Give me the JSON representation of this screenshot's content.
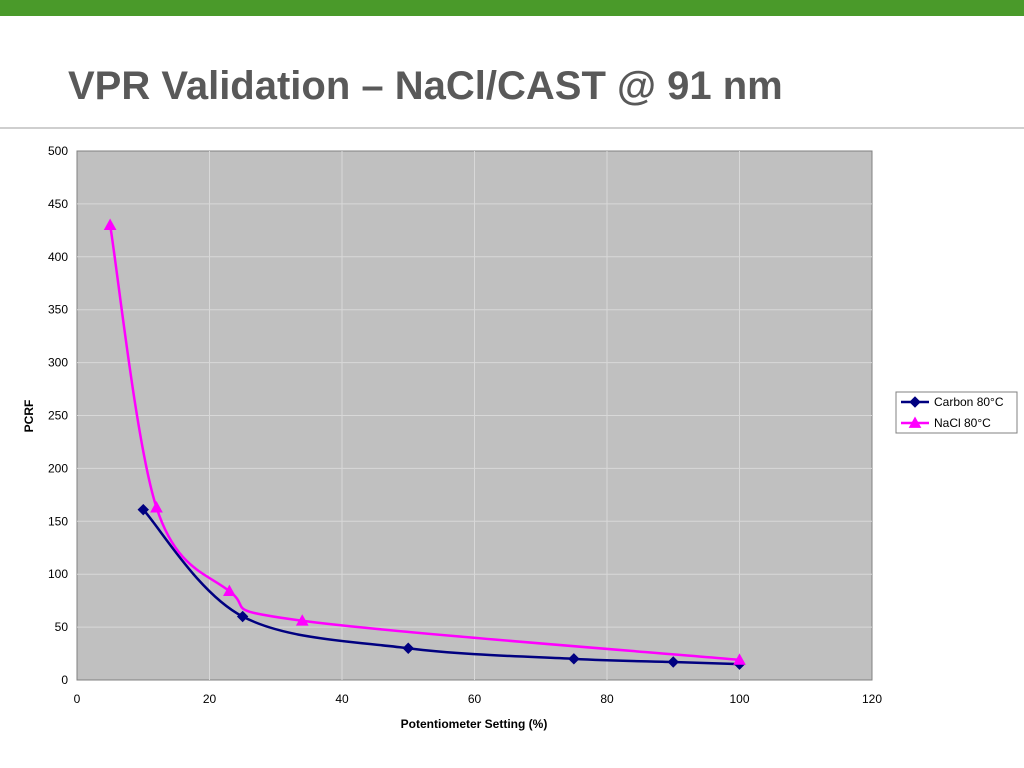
{
  "slide": {
    "title": "VPR Validation – NaCl/CAST @ 91 nm",
    "accent_color": "#4a9a2a"
  },
  "chart_data": {
    "type": "line",
    "title": "",
    "xlabel": "Potentiometer Setting (%)",
    "ylabel": "PCRF",
    "xlim": [
      0,
      120
    ],
    "ylim": [
      0,
      500
    ],
    "x_ticks": [
      0,
      20,
      40,
      60,
      80,
      100,
      120
    ],
    "y_ticks": [
      0,
      50,
      100,
      150,
      200,
      250,
      300,
      350,
      400,
      450,
      500
    ],
    "grid": true,
    "legend_position": "right",
    "plot_background": "#c0c0c0",
    "series": [
      {
        "name": "Carbon 80°C",
        "color": "#000080",
        "marker": "diamond",
        "points": [
          [
            10,
            161
          ],
          [
            25,
            60
          ],
          [
            50,
            30
          ],
          [
            75,
            20
          ],
          [
            90,
            17
          ],
          [
            100,
            15
          ]
        ]
      },
      {
        "name": "NaCl 80°C",
        "color": "#ff00ff",
        "marker": "triangle",
        "points": [
          [
            5,
            430
          ],
          [
            12,
            163
          ],
          [
            23,
            84
          ],
          [
            34,
            56
          ],
          [
            100,
            19
          ]
        ]
      }
    ]
  }
}
